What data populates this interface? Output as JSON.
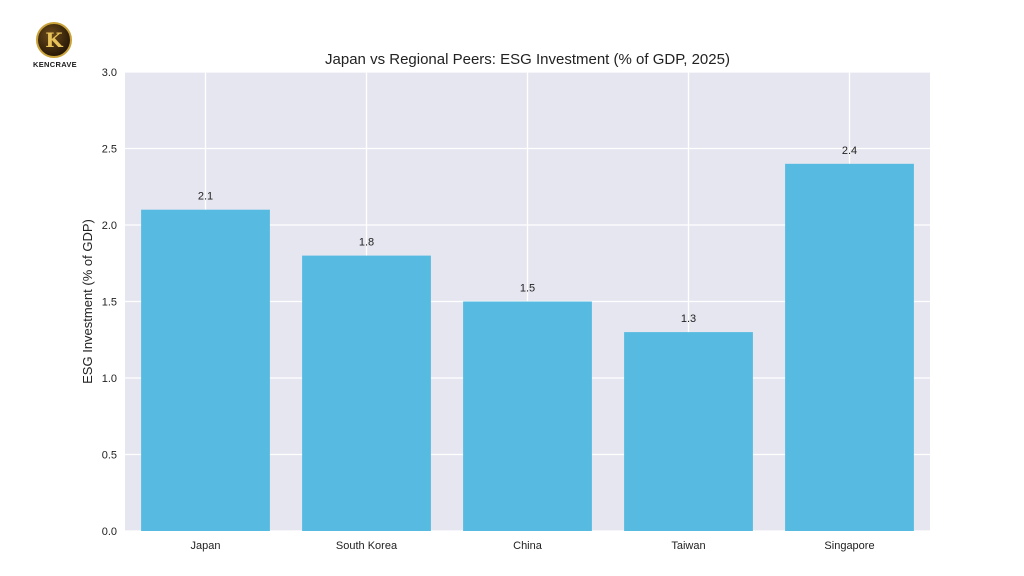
{
  "brand": {
    "logo_letter": "K",
    "logo_text": "KENCRAVE"
  },
  "chart_data": {
    "type": "bar",
    "title": "Japan vs Regional Peers: ESG Investment (% of GDP, 2025)",
    "xlabel": "",
    "ylabel": "ESG Investment (% of GDP)",
    "categories": [
      "Japan",
      "South Korea",
      "China",
      "Taiwan",
      "Singapore"
    ],
    "values": [
      2.1,
      1.8,
      1.5,
      1.3,
      2.4
    ],
    "data_labels": [
      "2.1",
      "1.8",
      "1.5",
      "1.3",
      "2.4"
    ],
    "ylim": [
      0,
      3.0
    ],
    "yticks": [
      0.0,
      0.5,
      1.0,
      1.5,
      2.0,
      2.5,
      3.0
    ],
    "ytick_labels": [
      "0.0",
      "0.5",
      "1.0",
      "1.5",
      "2.0",
      "2.5",
      "3.0"
    ],
    "grid": true,
    "colors": {
      "bar": "#57bbe1",
      "plot_bg": "#e6e6f0",
      "grid": "#ffffff",
      "text": "#222222"
    }
  }
}
